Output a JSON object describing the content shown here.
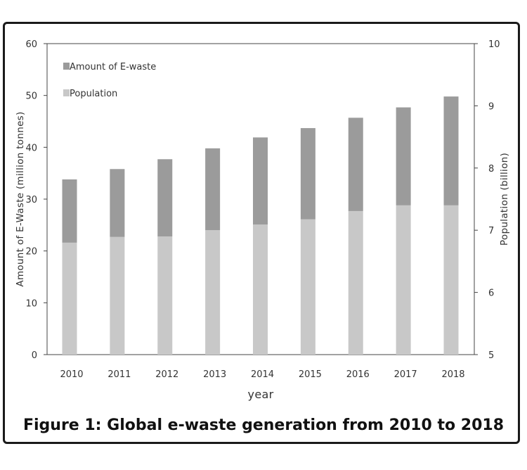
{
  "caption": "Figure 1: Global e-waste generation from 2010 to 2018",
  "chart_data": {
    "type": "bar",
    "stacked": true,
    "title": "",
    "xlabel": "year",
    "ylabel_left": "Amount of E-Waste (million tonnes)",
    "ylabel_right": "Population (billion)",
    "ylim_left": [
      0,
      60
    ],
    "ylim_right": [
      5,
      10
    ],
    "yticks_left": [
      "0",
      "10",
      "20",
      "30",
      "40",
      "50",
      "60"
    ],
    "yticks_right": [
      "5",
      "6",
      "7",
      "8",
      "9",
      "10"
    ],
    "categories": [
      "2010",
      "2011",
      "2012",
      "2013",
      "2014",
      "2015",
      "2016",
      "2017",
      "2018"
    ],
    "series": [
      {
        "name": "Population",
        "color": "#c8c8c8",
        "values": [
          21.6,
          22.7,
          22.8,
          24.0,
          25.1,
          26.1,
          27.7,
          28.8,
          28.8
        ]
      },
      {
        "name": "Amount of E-waste",
        "color": "#9b9b9b",
        "values": [
          12.2,
          13.1,
          14.9,
          15.8,
          16.8,
          17.6,
          18.0,
          18.9,
          21.0
        ]
      }
    ],
    "legend": [
      "Amount of E-waste",
      "Population"
    ],
    "legend_position": "top-left",
    "grid": false
  }
}
